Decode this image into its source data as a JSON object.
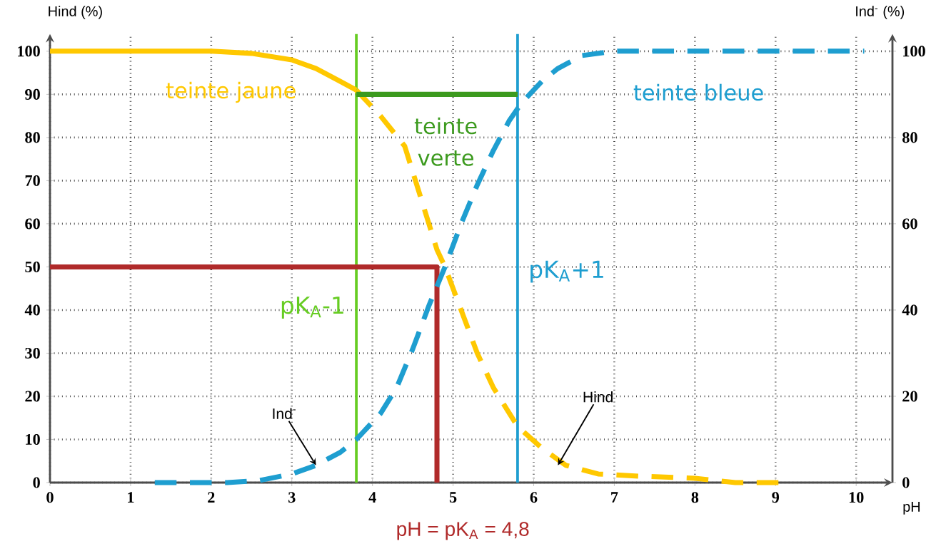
{
  "chart_data": {
    "type": "line",
    "xlabel": "pH",
    "ylabel": "Hind (%)",
    "y2label": "Ind$^{-}$ (%)",
    "xlim": [
      0,
      10.45
    ],
    "ylim": [
      0,
      104
    ],
    "y2lim": [
      0,
      104
    ],
    "xticks": [
      0,
      1,
      2,
      3,
      4,
      5,
      6,
      7,
      8,
      9,
      10
    ],
    "yticks": [
      0,
      10,
      20,
      30,
      40,
      50,
      60,
      70,
      80,
      90,
      100
    ],
    "y2ticks": [
      0,
      20,
      40,
      60,
      80,
      100
    ],
    "grid": true,
    "marker": "none",
    "series": [
      {
        "color": "#ffc800",
        "line_style": "solid",
        "x": [
          0,
          0.5,
          1,
          1.5,
          2,
          2.5,
          3,
          3.3,
          3.6,
          3.8
        ],
        "values": [
          100,
          100,
          100,
          100,
          100,
          99.5,
          98,
          96,
          93,
          91
        ]
      },
      {
        "color": "#ffc800",
        "line_style": "dashed",
        "x": [
          3.8,
          4.1,
          4.4,
          4.6,
          4.8,
          4.9,
          5.1,
          5.3,
          5.5,
          5.8,
          6.1,
          6.4,
          6.8,
          7.3,
          8,
          8.5,
          9.2
        ],
        "values": [
          91,
          85,
          78,
          66,
          54,
          50,
          40,
          30,
          22,
          13,
          8,
          4,
          2,
          1.5,
          1,
          0,
          0
        ]
      },
      {
        "color": "#1e9ed0",
        "line_style": "dashed",
        "axis": "y2",
        "x": [
          1.3,
          1.8,
          2.2,
          2.6,
          3,
          3.3,
          3.6,
          3.8,
          4.1,
          4.3,
          4.5,
          4.7,
          4.9,
          5.1,
          5.3,
          5.5,
          5.7,
          5.85,
          6.1,
          6.3,
          6.6,
          7,
          8,
          9,
          10.1
        ],
        "values": [
          0,
          0,
          0,
          0.5,
          2,
          4,
          7,
          10,
          16,
          22,
          31,
          41,
          50,
          60,
          69,
          77,
          84,
          88,
          93,
          96,
          99,
          100,
          100,
          100,
          100
        ]
      },
      {
        "color": "#b02a2a",
        "line_style": "solid",
        "x": [
          0,
          4.8,
          4.8
        ],
        "values": [
          50,
          50,
          0
        ]
      },
      {
        "color": "#3c9a1e",
        "line_style": "solid",
        "x": [
          3.8,
          5.8
        ],
        "values": [
          90,
          90
        ]
      }
    ],
    "ref_lines": [
      {
        "axis": "x",
        "value": 3.8,
        "label": "pK$_{A}$-1",
        "color": "#66cc22"
      },
      {
        "axis": "x",
        "value": 5.8,
        "label": "pK$_{A}$+1",
        "color": "#1e9ed0"
      }
    ],
    "annotations": [
      "teinte jaune",
      "teinte verte",
      "teinte bleue",
      {
        "text": "Ind$^{-}$",
        "x": 3.3,
        "y": 4
      },
      {
        "text": "Hind",
        "x": 6.3,
        "y": 4
      },
      "pH = pK$_{A}$ = 4,8"
    ]
  }
}
